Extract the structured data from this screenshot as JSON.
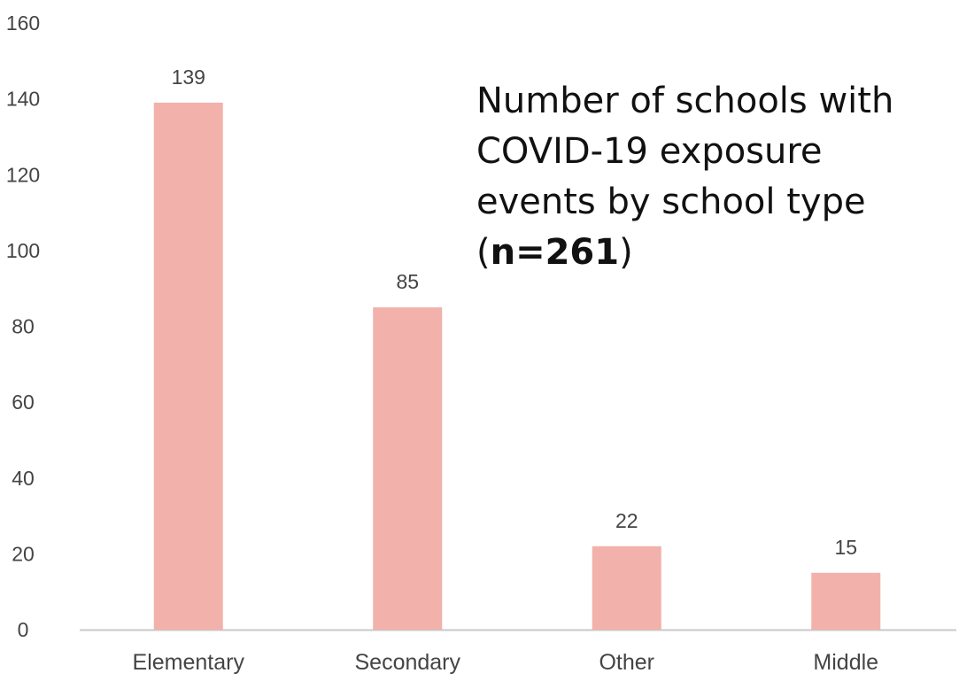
{
  "chart_data": {
    "type": "bar",
    "title_lines": [
      "Number of schools with",
      "COVID-19 exposure",
      "events by school type"
    ],
    "title_note": {
      "open": "(",
      "bold": "n=261",
      "close": ")"
    },
    "categories": [
      "Elementary",
      "Secondary",
      "Other",
      "Middle"
    ],
    "values": [
      139,
      85,
      22,
      15
    ],
    "data_labels": [
      "139",
      "85",
      "22",
      "15"
    ],
    "ylim": [
      0,
      160
    ],
    "yticks": [
      0,
      20,
      40,
      60,
      80,
      100,
      120,
      140,
      160
    ],
    "xlabel": "",
    "ylabel": "",
    "grid": false,
    "legend": "none",
    "bar_color": "#f2b1ab",
    "axis_color": "#c8c8c8",
    "text_color": "#444444"
  }
}
